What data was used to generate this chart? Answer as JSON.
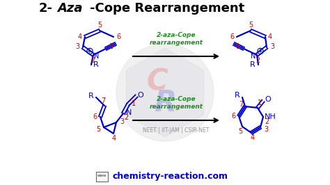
{
  "title_parts": [
    [
      "2-",
      false
    ],
    [
      "Aza",
      true
    ],
    [
      "-Cope Rearrangement",
      false
    ]
  ],
  "bg_color": "#ffffff",
  "blue": "#0000cc",
  "red": "#cc0000",
  "green": "#228B22",
  "watermark_text": "chemistry-reaction.com",
  "watermark_color": "#0000cc",
  "neet_text": "NEET | IIT-JAM | CSIR-NET",
  "top_arrow_label": "2-aza-Cope\nrearrangement",
  "bottom_arrow_label": "2-aza-Cope\nrearrangement",
  "figsize": [
    4.74,
    2.66
  ],
  "dpi": 100
}
